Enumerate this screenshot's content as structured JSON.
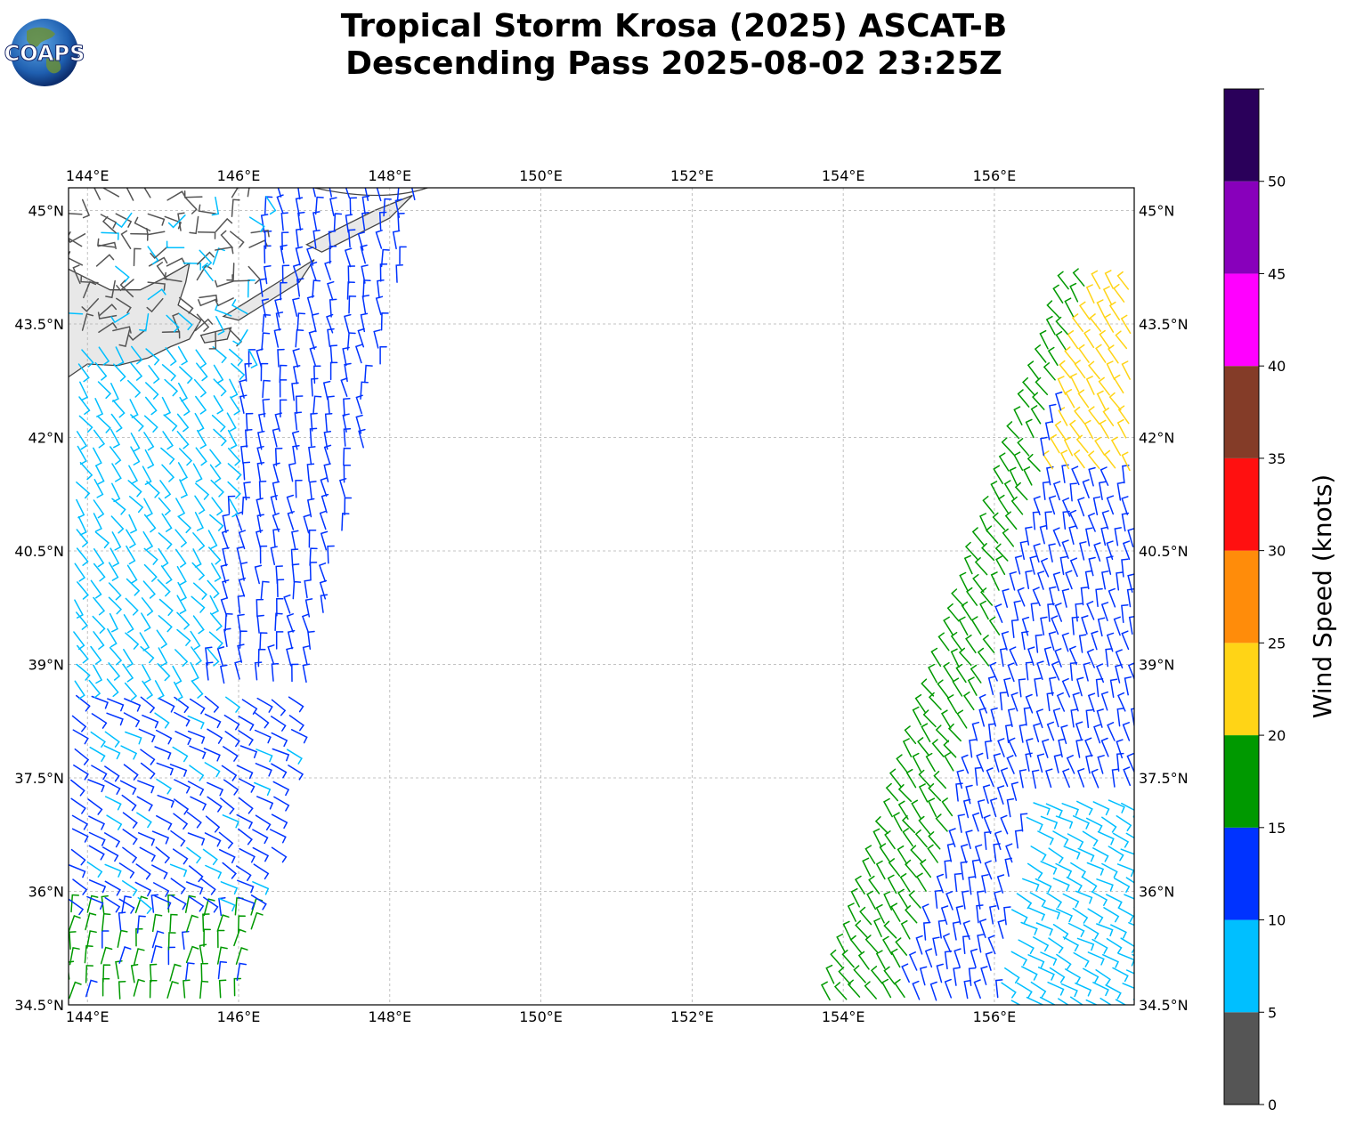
{
  "logo": {
    "text": "COAPS"
  },
  "title": {
    "line1": "Tropical Storm Krosa (2025) ASCAT-B",
    "line2": "Descending Pass 2025-08-02 23:25Z"
  },
  "map": {
    "lon_range": [
      143.75,
      157.85
    ],
    "lat_range": [
      34.5,
      45.3
    ],
    "lon_ticks": [
      {
        "value": 144,
        "label": "144°E"
      },
      {
        "value": 146,
        "label": "146°E"
      },
      {
        "value": 148,
        "label": "148°E"
      },
      {
        "value": 150,
        "label": "150°E"
      },
      {
        "value": 152,
        "label": "152°E"
      },
      {
        "value": 154,
        "label": "154°E"
      },
      {
        "value": 156,
        "label": "156°E"
      }
    ],
    "lat_ticks": [
      {
        "value": 45,
        "label": "45°N"
      },
      {
        "value": 43.5,
        "label": "43.5°N"
      },
      {
        "value": 42,
        "label": "42°N"
      },
      {
        "value": 40.5,
        "label": "40.5°N"
      },
      {
        "value": 39,
        "label": "39°N"
      },
      {
        "value": 37.5,
        "label": "37.5°N"
      },
      {
        "value": 36,
        "label": "36°N"
      },
      {
        "value": 34.5,
        "label": "34.5°N"
      }
    ],
    "gridlines": true,
    "coastline_color": "#444444",
    "land_color": "#e8e8e8",
    "west_swath": {
      "lon_bottom": [
        143.75,
        146.0
      ],
      "lon_top": [
        143.95,
        148.4
      ],
      "lat_range": [
        34.5,
        45.3
      ]
    },
    "east_swath": {
      "lon_bottom": [
        153.8,
        157.85
      ],
      "lon_top": [
        157.0,
        157.85
      ],
      "lat_range": [
        34.5,
        44.0
      ]
    }
  },
  "colorbar": {
    "label": "Wind Speed (knots)",
    "ticks": [
      {
        "value": 0,
        "label": "0"
      },
      {
        "value": 5,
        "label": "5"
      },
      {
        "value": 10,
        "label": "10"
      },
      {
        "value": 15,
        "label": "15"
      },
      {
        "value": 20,
        "label": "20"
      },
      {
        "value": 25,
        "label": "25"
      },
      {
        "value": 30,
        "label": "30"
      },
      {
        "value": 35,
        "label": "35"
      },
      {
        "value": 40,
        "label": "40"
      },
      {
        "value": 45,
        "label": "45"
      },
      {
        "value": 50,
        "label": "50"
      }
    ],
    "range": [
      0,
      55
    ],
    "bins": [
      {
        "min": 0,
        "max": 5,
        "color": "#555555"
      },
      {
        "min": 5,
        "max": 10,
        "color": "#00bfff"
      },
      {
        "min": 10,
        "max": 15,
        "color": "#0033ff"
      },
      {
        "min": 15,
        "max": 20,
        "color": "#009900"
      },
      {
        "min": 20,
        "max": 25,
        "color": "#ffd416"
      },
      {
        "min": 25,
        "max": 30,
        "color": "#ff8c0a"
      },
      {
        "min": 30,
        "max": 35,
        "color": "#ff1010"
      },
      {
        "min": 35,
        "max": 40,
        "color": "#843c28"
      },
      {
        "min": 40,
        "max": 45,
        "color": "#ff00ff"
      },
      {
        "min": 45,
        "max": 50,
        "color": "#8800bb"
      },
      {
        "min": 50,
        "max": 55,
        "color": "#2a005a"
      }
    ]
  }
}
